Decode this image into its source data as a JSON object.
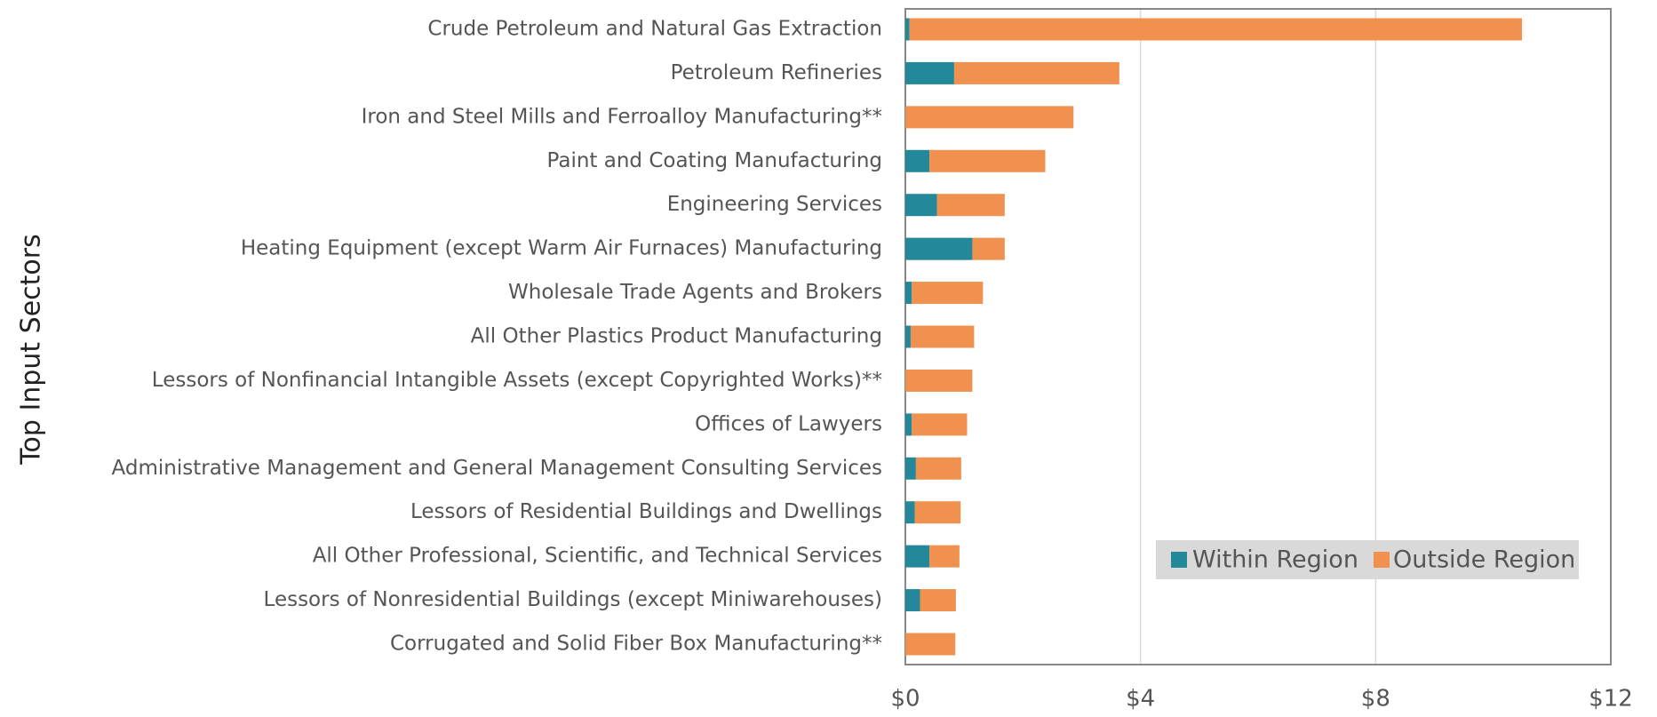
{
  "chart_data": {
    "type": "stacked_barh",
    "ylabel": "Top Input Sectors",
    "categories": [
      "Crude Petroleum and Natural Gas Extraction",
      "Petroleum Refineries",
      "Iron and Steel Mills and Ferroalloy Manufacturing**",
      "Paint and Coating Manufacturing",
      "Engineering Services",
      "Heating Equipment (except Warm Air Furnaces) Manufacturing",
      "Wholesale Trade Agents and Brokers",
      "All Other Plastics Product Manufacturing",
      "Lessors of Nonfinancial Intangible Assets (except Copyrighted Works)**",
      "Offices of Lawyers",
      "Administrative Management and General Management Consulting Services",
      "Lessors of Residential Buildings and Dwellings",
      "All Other Professional, Scientific, and Technical Services",
      "Lessors of Nonresidential Buildings (except Miniwarehouses)",
      "Corrugated and Solid Fiber Box Manufacturing**"
    ],
    "series": [
      {
        "name": "Within Region",
        "color": "#23899a",
        "values": [
          0.07,
          0.83,
          0,
          0.41,
          0.54,
          1.14,
          0.11,
          0.09,
          0,
          0.11,
          0.18,
          0.16,
          0.41,
          0.25,
          0
        ]
      },
      {
        "name": "Outside Region",
        "color": "#f0914f",
        "values": [
          10.42,
          2.81,
          2.86,
          1.97,
          1.15,
          0.55,
          1.21,
          1.08,
          1.14,
          0.94,
          0.77,
          0.78,
          0.51,
          0.61,
          0.85
        ]
      }
    ],
    "xlim": [
      0,
      12
    ],
    "xticks": [
      {
        "value": 0,
        "label": "$0"
      },
      {
        "value": 4,
        "label": "$4"
      },
      {
        "value": 8,
        "label": "$8"
      },
      {
        "value": 12,
        "label": "$12"
      }
    ],
    "grid": true,
    "legend": "lower right"
  }
}
